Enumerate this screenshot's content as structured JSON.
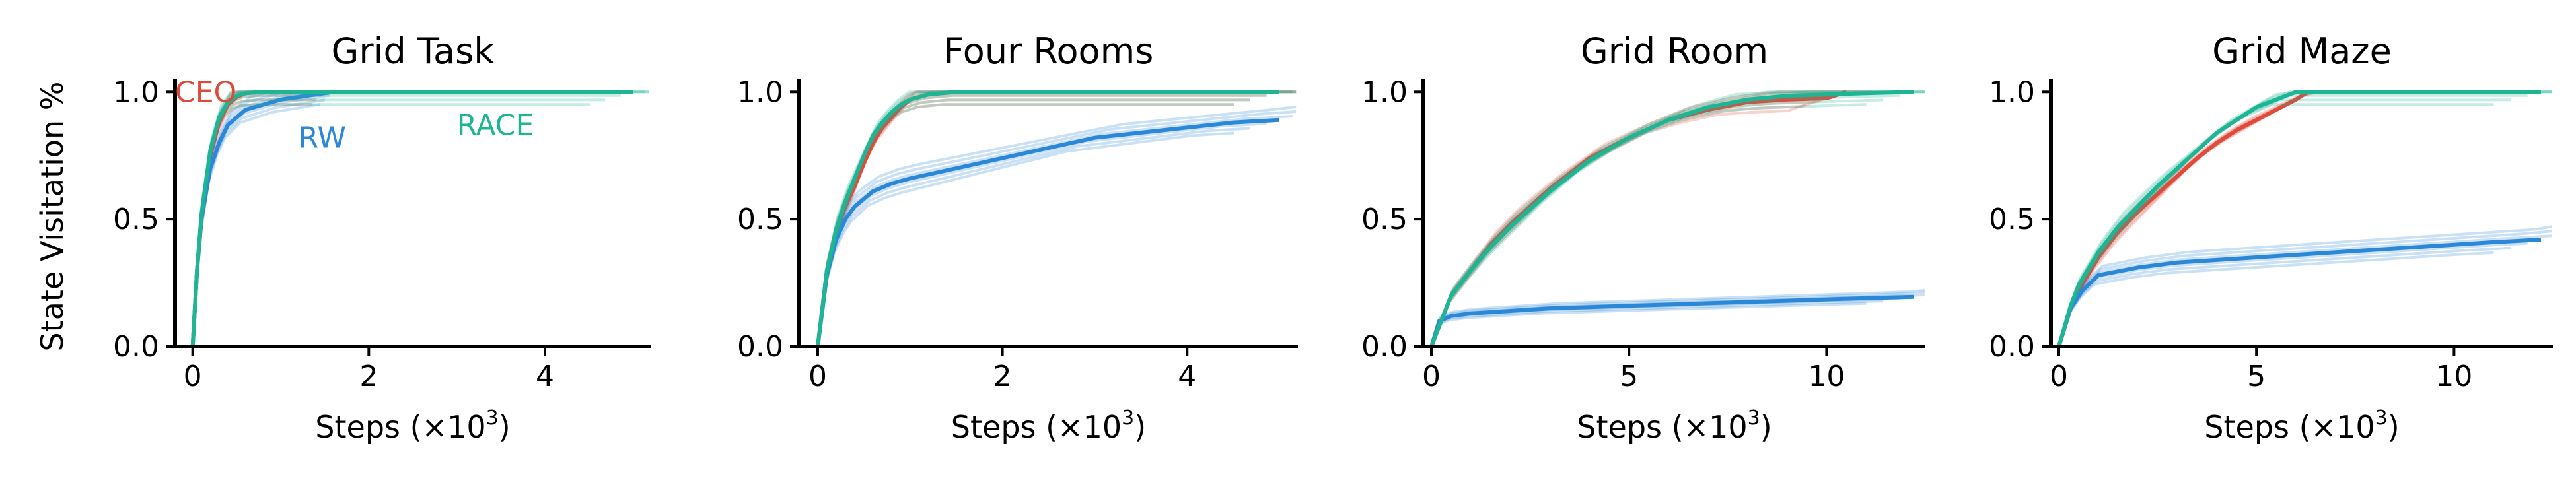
{
  "colors": {
    "CEO": "#e04a3b",
    "RW": "#2b88d8",
    "RACE": "#1db594"
  },
  "figure": {
    "ylabel": "State Visitation %"
  },
  "chart_data": [
    {
      "type": "line",
      "title": "Grid Task",
      "xlabel": "Steps (×10",
      "xlabel_exp": "3",
      "xlabel_close": ")",
      "xlim": [
        -0.2,
        5.2
      ],
      "ylim": [
        0.0,
        1.05
      ],
      "xticks": [
        0,
        2,
        4
      ],
      "yticks": [
        0.0,
        0.5,
        1.0
      ],
      "ytick_labels": [
        "0.0",
        "0.5",
        "1.0"
      ],
      "annotations": [
        {
          "text": "CEO",
          "series": "CEO",
          "x": -0.2,
          "y": 1.0
        },
        {
          "text": "RW",
          "series": "RW",
          "x": 1.2,
          "y": 0.82
        },
        {
          "text": "RACE",
          "series": "RACE",
          "x": 3.0,
          "y": 0.87
        }
      ],
      "series": [
        {
          "name": "CEO",
          "x": [
            0,
            0.05,
            0.1,
            0.2,
            0.3,
            0.4,
            0.5,
            0.6,
            0.8,
            1.0,
            1.5
          ],
          "y": [
            0,
            0.3,
            0.5,
            0.75,
            0.88,
            0.95,
            0.98,
            0.995,
            1.0,
            1.0,
            1.0
          ]
        },
        {
          "x": [
            0,
            0.05,
            0.1,
            0.2,
            0.3,
            0.4,
            0.5,
            0.6,
            0.8,
            1.0,
            1.2,
            1.4,
            1.6
          ],
          "y": [
            0,
            0.3,
            0.5,
            0.7,
            0.8,
            0.87,
            0.9,
            0.93,
            0.95,
            0.97,
            0.98,
            0.99,
            1.0
          ],
          "name": "RW"
        },
        {
          "x": [
            0,
            0.05,
            0.1,
            0.2,
            0.3,
            0.4,
            0.5,
            0.6,
            0.8,
            1.0,
            5.0
          ],
          "y": [
            0,
            0.3,
            0.52,
            0.77,
            0.9,
            0.96,
            0.985,
            0.995,
            1.0,
            1.0,
            1.0
          ],
          "name": "RACE"
        }
      ]
    },
    {
      "type": "line",
      "title": "Four Rooms",
      "xlabel": "Steps (×10",
      "xlabel_exp": "3",
      "xlabel_close": ")",
      "xlim": [
        -0.2,
        5.2
      ],
      "ylim": [
        0.0,
        1.05
      ],
      "xticks": [
        0,
        2,
        4
      ],
      "yticks": [
        0.0,
        0.5,
        1.0
      ],
      "ytick_labels": [
        "0.0",
        "0.5",
        "1.0"
      ],
      "series": [
        {
          "x": [
            0,
            0.1,
            0.2,
            0.3,
            0.4,
            0.5,
            0.6,
            0.7,
            0.8,
            0.9,
            1.0,
            1.2,
            1.5,
            2.0,
            5.0
          ],
          "y": [
            0,
            0.3,
            0.45,
            0.55,
            0.63,
            0.72,
            0.8,
            0.86,
            0.9,
            0.94,
            0.97,
            0.99,
            1.0,
            1.0,
            1.0
          ],
          "name": "CEO"
        },
        {
          "x": [
            0,
            0.1,
            0.2,
            0.3,
            0.4,
            0.5,
            0.6,
            0.8,
            1.0,
            1.5,
            2.0,
            2.5,
            3.0,
            3.5,
            4.0,
            4.5,
            5.0
          ],
          "y": [
            0,
            0.28,
            0.42,
            0.5,
            0.55,
            0.58,
            0.61,
            0.64,
            0.66,
            0.7,
            0.74,
            0.78,
            0.82,
            0.84,
            0.86,
            0.88,
            0.89
          ],
          "name": "RW"
        },
        {
          "x": [
            0,
            0.1,
            0.2,
            0.3,
            0.4,
            0.5,
            0.6,
            0.7,
            0.8,
            0.9,
            1.0,
            1.2,
            1.5,
            2.0,
            5.0
          ],
          "y": [
            0,
            0.3,
            0.46,
            0.57,
            0.66,
            0.75,
            0.83,
            0.88,
            0.92,
            0.95,
            0.97,
            0.99,
            1.0,
            1.0,
            1.0
          ],
          "name": "RACE"
        }
      ]
    },
    {
      "type": "line",
      "title": "Grid Room",
      "xlabel": "Steps (×10",
      "xlabel_exp": "3",
      "xlabel_close": ")",
      "xlim": [
        -0.2,
        12.5
      ],
      "ylim": [
        0.0,
        1.05
      ],
      "xticks": [
        0,
        5,
        10
      ],
      "yticks": [
        0.0,
        0.5,
        1.0
      ],
      "ytick_labels": [
        "0.0",
        "0.5",
        "1.0"
      ],
      "series": [
        {
          "x": [
            0,
            0.3,
            0.5,
            1.0,
            1.5,
            2.0,
            2.5,
            3.0,
            3.5,
            4.0,
            5.0,
            6.0,
            7.0,
            8.0,
            9.0,
            10.0,
            10.5
          ],
          "y": [
            0,
            0.12,
            0.2,
            0.3,
            0.4,
            0.48,
            0.55,
            0.62,
            0.68,
            0.74,
            0.82,
            0.89,
            0.93,
            0.96,
            0.97,
            0.975,
            1.0
          ],
          "name": "CEO"
        },
        {
          "x": [
            0,
            0.2,
            0.5,
            1.0,
            2.0,
            3.0,
            4.0,
            5.0,
            6.0,
            7.0,
            8.0,
            9.0,
            10.0,
            11.0,
            12.2
          ],
          "y": [
            0,
            0.1,
            0.12,
            0.13,
            0.14,
            0.15,
            0.155,
            0.16,
            0.165,
            0.17,
            0.175,
            0.18,
            0.185,
            0.19,
            0.195
          ],
          "name": "RW"
        },
        {
          "x": [
            0,
            0.3,
            0.5,
            1.0,
            1.5,
            2.0,
            2.5,
            3.0,
            3.5,
            4.0,
            5.0,
            6.0,
            7.0,
            8.0,
            9.0,
            10.0,
            11.0,
            12.2
          ],
          "y": [
            0,
            0.12,
            0.2,
            0.3,
            0.39,
            0.47,
            0.54,
            0.61,
            0.67,
            0.73,
            0.82,
            0.89,
            0.94,
            0.97,
            0.985,
            0.99,
            0.995,
            1.0
          ],
          "name": "RACE"
        }
      ]
    },
    {
      "type": "line",
      "title": "Grid Maze",
      "xlabel": "Steps (×10",
      "xlabel_exp": "3",
      "xlabel_close": ")",
      "xlim": [
        -0.2,
        12.5
      ],
      "ylim": [
        0.0,
        1.05
      ],
      "xticks": [
        0,
        5,
        10
      ],
      "yticks": [
        0.0,
        0.5,
        1.0
      ],
      "ytick_labels": [
        "0.0",
        "0.5",
        "1.0"
      ],
      "series": [
        {
          "x": [
            0,
            0.3,
            0.5,
            1.0,
            1.5,
            2.0,
            2.5,
            3.0,
            3.5,
            4.0,
            4.5,
            5.0,
            5.5,
            6.0,
            6.3
          ],
          "y": [
            0,
            0.15,
            0.22,
            0.35,
            0.45,
            0.53,
            0.6,
            0.67,
            0.74,
            0.8,
            0.85,
            0.89,
            0.93,
            0.97,
            1.0
          ],
          "name": "CEO"
        },
        {
          "x": [
            0,
            0.3,
            0.6,
            1.0,
            2.0,
            3.0,
            4.0,
            5.0,
            6.0,
            7.0,
            8.0,
            9.0,
            10.0,
            11.0,
            12.2
          ],
          "y": [
            0,
            0.15,
            0.22,
            0.28,
            0.31,
            0.33,
            0.34,
            0.35,
            0.36,
            0.37,
            0.38,
            0.39,
            0.4,
            0.41,
            0.42
          ],
          "name": "RW"
        },
        {
          "x": [
            0,
            0.3,
            0.5,
            1.0,
            1.5,
            2.0,
            2.5,
            3.0,
            3.5,
            4.0,
            4.5,
            5.0,
            5.5,
            6.0,
            12.2
          ],
          "y": [
            0,
            0.16,
            0.24,
            0.37,
            0.47,
            0.55,
            0.63,
            0.7,
            0.77,
            0.84,
            0.89,
            0.94,
            0.97,
            1.0,
            1.0
          ],
          "name": "RACE"
        }
      ]
    }
  ]
}
